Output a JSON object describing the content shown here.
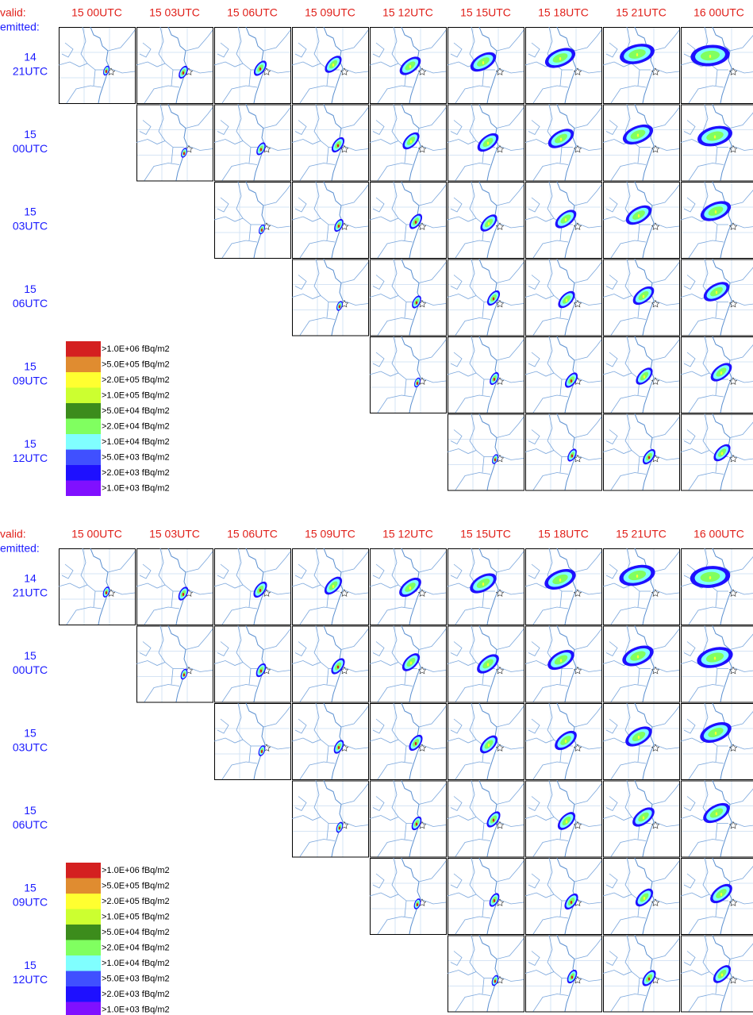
{
  "panels": [
    {
      "valid_label": "valid:",
      "emitted_label": "emitted:",
      "valid_times": [
        "15 00UTC",
        "15 03UTC",
        "15 06UTC",
        "15 09UTC",
        "15 12UTC",
        "15 15UTC",
        "15 18UTC",
        "15 21UTC",
        "16 00UTC"
      ],
      "emission_times": [
        {
          "day": "14",
          "hour": "21UTC"
        },
        {
          "day": "15",
          "hour": "00UTC"
        },
        {
          "day": "15",
          "hour": "03UTC"
        },
        {
          "day": "15",
          "hour": "06UTC"
        },
        {
          "day": "15",
          "hour": "09UTC"
        },
        {
          "day": "15",
          "hour": "12UTC"
        }
      ],
      "legend": [
        {
          "label": ">1.0E+06 fBq/m2",
          "color": "#d42020"
        },
        {
          "label": ">5.0E+05 fBq/m2",
          "color": "#e08c30"
        },
        {
          "label": ">2.0E+05 fBq/m2",
          "color": "#ffff30"
        },
        {
          "label": ">1.0E+05 fBq/m2",
          "color": "#ccff30"
        },
        {
          "label": ">5.0E+04 fBq/m2",
          "color": "#3c8c1c"
        },
        {
          "label": ">2.0E+04 fBq/m2",
          "color": "#80ff60"
        },
        {
          "label": ">1.0E+04 fBq/m2",
          "color": "#80ffff"
        },
        {
          "label": ">5.0E+03 fBq/m2",
          "color": "#4050ff"
        },
        {
          "label": ">2.0E+03 fBq/m2",
          "color": "#1e10ff"
        },
        {
          "label": ">1.0E+03 fBq/m2",
          "color": "#8010ff"
        }
      ]
    },
    {
      "valid_label": "valid:",
      "emitted_label": "emitted:",
      "valid_times": [
        "15 00UTC",
        "15 03UTC",
        "15 06UTC",
        "15 09UTC",
        "15 12UTC",
        "15 15UTC",
        "15 18UTC",
        "15 21UTC",
        "16 00UTC"
      ],
      "emission_times": [
        {
          "day": "14",
          "hour": "21UTC"
        },
        {
          "day": "15",
          "hour": "00UTC"
        },
        {
          "day": "15",
          "hour": "03UTC"
        },
        {
          "day": "15",
          "hour": "06UTC"
        },
        {
          "day": "15",
          "hour": "09UTC"
        },
        {
          "day": "15",
          "hour": "12UTC"
        }
      ],
      "legend": [
        {
          "label": ">1.0E+06 fBq/m2",
          "color": "#d42020"
        },
        {
          "label": ">5.0E+05 fBq/m2",
          "color": "#e08c30"
        },
        {
          "label": ">2.0E+05 fBq/m2",
          "color": "#ffff30"
        },
        {
          "label": ">1.0E+05 fBq/m2",
          "color": "#ccff30"
        },
        {
          "label": ">5.0E+04 fBq/m2",
          "color": "#3c8c1c"
        },
        {
          "label": ">2.0E+04 fBq/m2",
          "color": "#80ff60"
        },
        {
          "label": ">1.0E+04 fBq/m2",
          "color": "#80ffff"
        },
        {
          "label": ">5.0E+03 fBq/m2",
          "color": "#4050ff"
        },
        {
          "label": ">2.0E+03 fBq/m2",
          "color": "#1e10ff"
        },
        {
          "label": ">1.0E+03 fBq/m2",
          "color": "#8010ff"
        }
      ]
    }
  ]
}
